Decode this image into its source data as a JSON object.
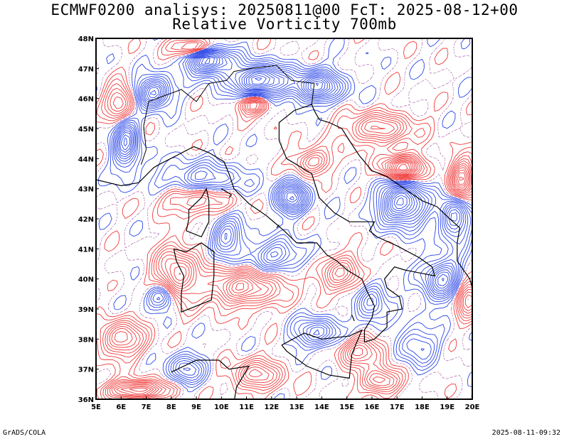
{
  "title_line1": "ECMWF0200 analisys: 20250811@00 FcT: 2025-08-12+00",
  "title_line2": "Relative Vorticity 700mb",
  "footer_left": "GrADS/COLA",
  "footer_right": "2025-08-11-09:32",
  "colors": {
    "positive_contour": "#f03a3a",
    "negative_contour": "#2a46e6",
    "zero_contour": "#b070b0",
    "coastline": "#000000",
    "frame": "#000000"
  },
  "map": {
    "lon_range": [
      5,
      20
    ],
    "lat_range": [
      36,
      48
    ],
    "lon_ticks": [
      "5E",
      "6E",
      "7E",
      "8E",
      "9E",
      "10E",
      "11E",
      "12E",
      "13E",
      "14E",
      "15E",
      "16E",
      "17E",
      "18E",
      "19E",
      "20E"
    ],
    "lat_ticks": [
      "36N",
      "37N",
      "38N",
      "39N",
      "40N",
      "41N",
      "42N",
      "43N",
      "44N",
      "45N",
      "46N",
      "47N",
      "48N"
    ]
  }
}
